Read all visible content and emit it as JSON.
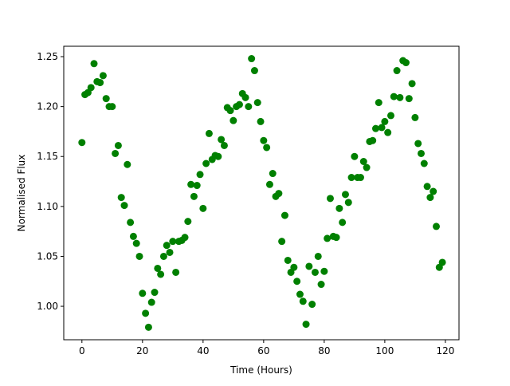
{
  "chart_data": {
    "type": "scatter",
    "xlabel": "Time (Hours)",
    "ylabel": "Normalised Flux",
    "xlim": [
      -6,
      124.5
    ],
    "ylim": [
      0.9665,
      1.2604
    ],
    "xticks": [
      0,
      20,
      40,
      60,
      80,
      100,
      120
    ],
    "yticks": [
      {
        "value": 1.0,
        "label": "1.00"
      },
      1.05,
      {
        "value": 1.1,
        "label": "1.10"
      },
      1.15,
      {
        "value": 1.2,
        "label": "1.20"
      },
      1.25
    ],
    "grid": false,
    "series": [
      {
        "color": "#008000",
        "x": [
          0,
          1,
          2,
          3,
          4,
          5,
          6,
          7,
          8,
          9,
          10,
          11,
          12,
          13,
          14,
          15,
          16,
          17,
          18,
          19,
          20,
          21,
          22,
          23,
          24,
          25,
          26,
          27,
          28,
          29,
          30,
          31,
          32,
          33,
          34,
          35,
          36,
          37,
          38,
          39,
          40,
          41,
          42,
          43,
          44,
          45,
          46,
          47,
          48,
          49,
          50,
          51,
          52,
          53,
          54,
          55,
          56,
          57,
          58,
          59,
          60,
          61,
          62,
          63,
          64,
          65,
          66,
          67,
          68,
          69,
          70,
          71,
          72,
          73,
          74,
          75,
          76,
          77,
          78,
          79,
          80,
          81,
          82,
          83,
          84,
          85,
          86,
          87,
          88,
          89,
          90,
          91,
          92,
          93,
          94,
          95,
          96,
          97,
          98,
          99,
          100,
          101,
          102,
          103,
          104,
          105,
          106,
          107,
          108,
          109,
          110,
          111,
          112,
          113,
          114,
          115,
          116,
          117,
          118,
          119
        ],
        "values": [
          1.164,
          1.212,
          1.214,
          1.219,
          1.243,
          1.225,
          1.224,
          1.231,
          1.208,
          1.2,
          1.2,
          1.153,
          1.161,
          1.109,
          1.101,
          1.142,
          1.084,
          1.07,
          1.063,
          1.05,
          1.013,
          0.993,
          0.979,
          1.004,
          1.014,
          1.038,
          1.032,
          1.05,
          1.061,
          1.054,
          1.065,
          1.034,
          1.065,
          1.066,
          1.069,
          1.085,
          1.122,
          1.11,
          1.121,
          1.132,
          1.098,
          1.143,
          1.173,
          1.147,
          1.151,
          1.15,
          1.167,
          1.161,
          1.199,
          1.196,
          1.186,
          1.2,
          1.202,
          1.213,
          1.209,
          1.2,
          1.248,
          1.236,
          1.204,
          1.185,
          1.166,
          1.159,
          1.122,
          1.133,
          1.11,
          1.113,
          1.065,
          1.091,
          1.046,
          1.034,
          1.039,
          1.025,
          1.012,
          1.005,
          0.982,
          1.04,
          1.002,
          1.034,
          1.05,
          1.022,
          1.035,
          1.068,
          1.108,
          1.07,
          1.069,
          1.098,
          1.084,
          1.112,
          1.104,
          1.129,
          1.15,
          1.129,
          1.129,
          1.145,
          1.139,
          1.165,
          1.166,
          1.178,
          1.204,
          1.179,
          1.185,
          1.174,
          1.191,
          1.21,
          1.236,
          1.209,
          1.246,
          1.244,
          1.208,
          1.223,
          1.189,
          1.163,
          1.153,
          1.143,
          1.12,
          1.109,
          1.115,
          1.08,
          1.039,
          1.044
        ]
      }
    ]
  }
}
